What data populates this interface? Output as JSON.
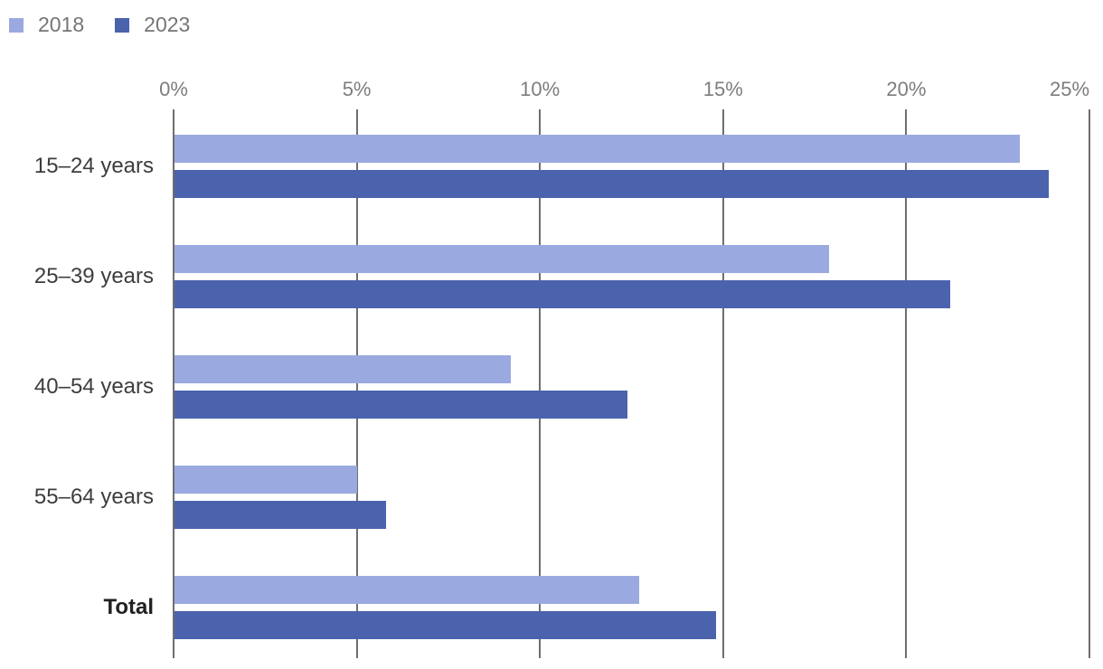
{
  "legend": {
    "items": [
      {
        "label": "2018",
        "color": "#9AA9E0"
      },
      {
        "label": "2023",
        "color": "#4B62AD"
      }
    ]
  },
  "chart_data": {
    "type": "bar",
    "orientation": "horizontal",
    "title": "",
    "xlabel": "",
    "ylabel": "",
    "categories": [
      "15–24 years",
      "25–39 years",
      "40–54 years",
      "55–64 years",
      "Total"
    ],
    "series": [
      {
        "name": "2018",
        "color": "#9AA9E0",
        "values": [
          23.1,
          17.9,
          9.2,
          5.0,
          12.7
        ]
      },
      {
        "name": "2023",
        "color": "#4B62AD",
        "values": [
          23.9,
          21.2,
          12.4,
          5.8,
          14.8
        ]
      }
    ],
    "x_axis": {
      "position": "top",
      "unit": "%",
      "tick_labels": [
        "0%",
        "5%",
        "10%",
        "15%",
        "20%",
        "25%"
      ],
      "tick_values": [
        0,
        5,
        10,
        15,
        20,
        25
      ],
      "min": 0,
      "max": 25
    },
    "grid": "vertical",
    "legend_position": "top-left",
    "bold_categories": [
      "Total"
    ],
    "colors": {
      "gridline": "#6e6e6e",
      "tick_label": "#7d7d7d",
      "category_label": "#3d3d3d",
      "legend_label": "#757575"
    }
  }
}
